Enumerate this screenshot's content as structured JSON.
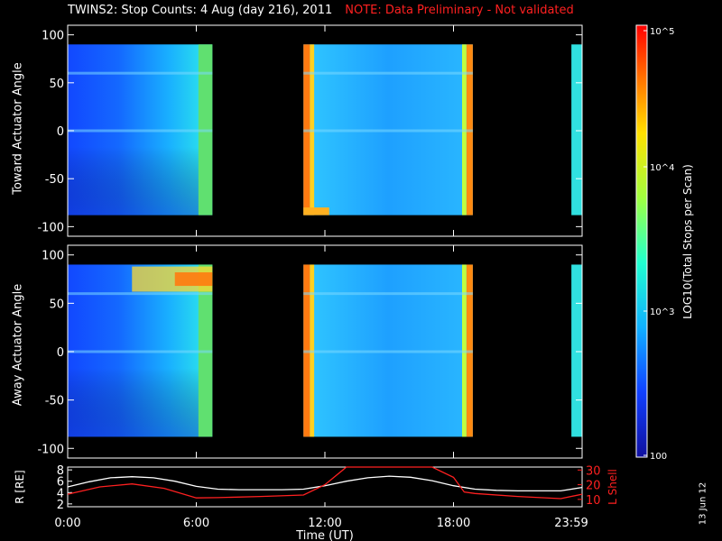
{
  "title": {
    "main": "TWINS2: Stop Counts:  4 Aug (day 216), 2011",
    "note": "NOTE: Data Preliminary - Not validated",
    "note_color": "#ff2020"
  },
  "stamp": "13 Jun 12",
  "chart_data": [
    {
      "type": "heatmap",
      "ylabel": "Toward Actuator Angle",
      "ylim": [
        -110,
        110
      ],
      "yticks": [
        "100",
        "50",
        "0",
        "-50",
        "-100"
      ],
      "data_blocks_hours": [
        [
          0.0,
          6.75
        ],
        [
          11.0,
          18.9
        ],
        [
          23.5,
          24.0
        ]
      ],
      "scale": "log"
    },
    {
      "type": "heatmap",
      "ylabel": "Away Actuator Angle",
      "ylim": [
        -110,
        110
      ],
      "yticks": [
        "100",
        "50",
        "0",
        "-50",
        "-100"
      ],
      "data_blocks_hours": [
        [
          0.0,
          6.75
        ],
        [
          11.0,
          18.9
        ],
        [
          23.5,
          24.0
        ]
      ],
      "scale": "log"
    },
    {
      "type": "line",
      "xlabel": "Time (UT)",
      "xticks": [
        "0:00",
        "6:00",
        "12:00",
        "18:00",
        "23:59"
      ],
      "left_axis": {
        "label": "R [RE]",
        "ticks": [
          "8",
          "6",
          "4",
          "2"
        ],
        "ylim": [
          1.5,
          8.5
        ]
      },
      "right_axis": {
        "label": "L Shell",
        "ticks": [
          "30",
          "20",
          "10"
        ],
        "ylim": [
          5,
          32
        ],
        "color": "#ff2020"
      },
      "series": [
        {
          "axis": "left",
          "color": "#ffffff",
          "x": [
            0.0,
            1.0,
            2.0,
            3.0,
            4.0,
            5.0,
            6.0,
            7.0,
            8.0,
            9.0,
            10.0,
            11.0,
            12.0,
            13.0,
            14.0,
            15.0,
            16.0,
            17.0,
            18.0,
            19.0,
            20.0,
            21.0,
            22.0,
            23.0,
            24.0
          ],
          "values": [
            5.0,
            5.9,
            6.6,
            6.8,
            6.6,
            6.0,
            5.1,
            4.6,
            4.5,
            4.5,
            4.5,
            4.6,
            5.2,
            6.0,
            6.6,
            6.9,
            6.7,
            6.1,
            5.2,
            4.6,
            4.4,
            4.3,
            4.3,
            4.3,
            4.9
          ]
        },
        {
          "axis": "right",
          "color": "#ff2020",
          "x": [
            0.0,
            1.5,
            3.0,
            4.5,
            6.0,
            7.0,
            9.0,
            11.0,
            12.0,
            13.0,
            17.0,
            18.0,
            18.5,
            19.0,
            21.0,
            23.0,
            24.0
          ],
          "values": [
            13.5,
            18.5,
            20.5,
            17.5,
            11.0,
            11.2,
            12.0,
            13.0,
            20.0,
            32.0,
            32.0,
            25.0,
            15.0,
            14.0,
            12.0,
            10.5,
            13.5
          ]
        }
      ]
    }
  ],
  "colorbar": {
    "label": "LOG10(Total Stops per Scan)",
    "ticks": [
      "10^5",
      "10^4",
      "10^3",
      "100"
    ]
  }
}
